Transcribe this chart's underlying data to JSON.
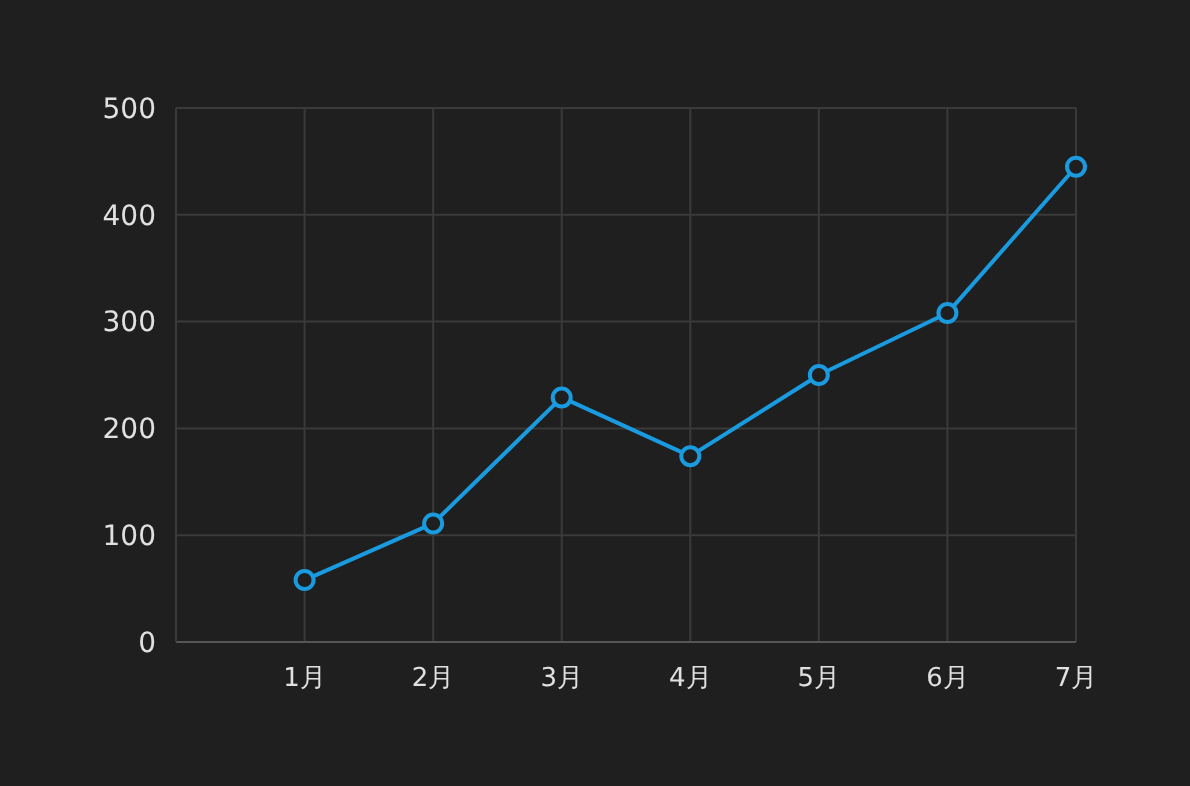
{
  "chart_data": {
    "type": "line",
    "categories": [
      null,
      "1月",
      "2月",
      "3月",
      "4月",
      "5月",
      "6月",
      "7月"
    ],
    "series": [
      {
        "color": "#1a9be0",
        "values": [
          null,
          58,
          111,
          229,
          174,
          250,
          308,
          445
        ]
      }
    ],
    "ylim": [
      0,
      500
    ],
    "yticks": [
      0,
      100,
      200,
      300,
      400,
      500
    ],
    "grid": true,
    "marker": "circle",
    "line_style": "solid"
  }
}
